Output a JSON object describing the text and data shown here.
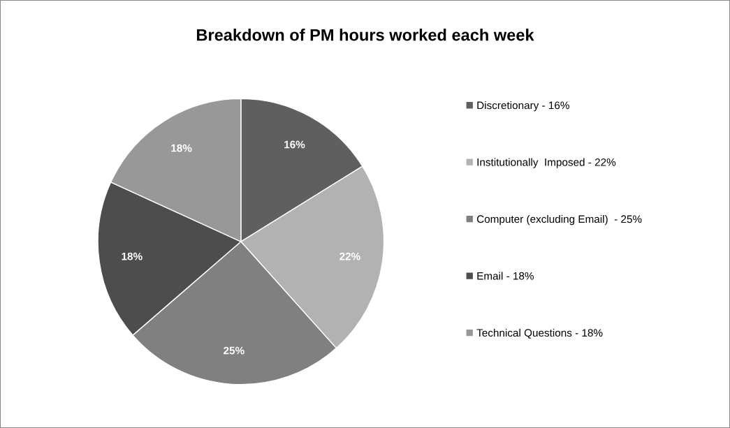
{
  "chart_data": {
    "type": "pie",
    "title": "Breakdown of PM hours worked each week",
    "categories": [
      "Discretionary - 16%",
      "Institutionally  Imposed - 22%",
      "Computer (excluding Email)  - 25%",
      "Email - 18%",
      "Technical Questions - 18%"
    ],
    "values": [
      16,
      22,
      25,
      18,
      18
    ],
    "colors": [
      "#5f5f5f",
      "#b2b2b2",
      "#808080",
      "#4d4d4d",
      "#989898"
    ],
    "value_labels": [
      "16%",
      "22%",
      "25%",
      "18%",
      "18%"
    ],
    "legend": "right"
  }
}
